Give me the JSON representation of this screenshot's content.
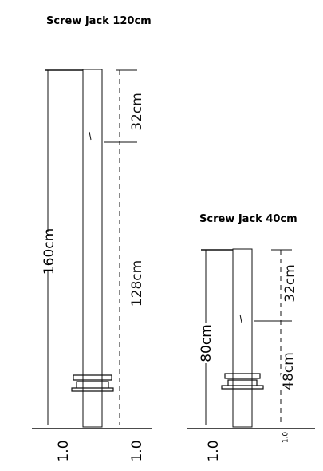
{
  "jacks": [
    {
      "title": "Screw Jack 120cm",
      "total": "160cm",
      "top": "32cm",
      "bottom": "128cm",
      "base_left": "1.0",
      "base_right": "1.0"
    },
    {
      "title": "Screw Jack 40cm",
      "total": "80cm",
      "top": "32cm",
      "bottom": "48cm",
      "base_left": "1.0",
      "base_right": "1.0"
    }
  ]
}
